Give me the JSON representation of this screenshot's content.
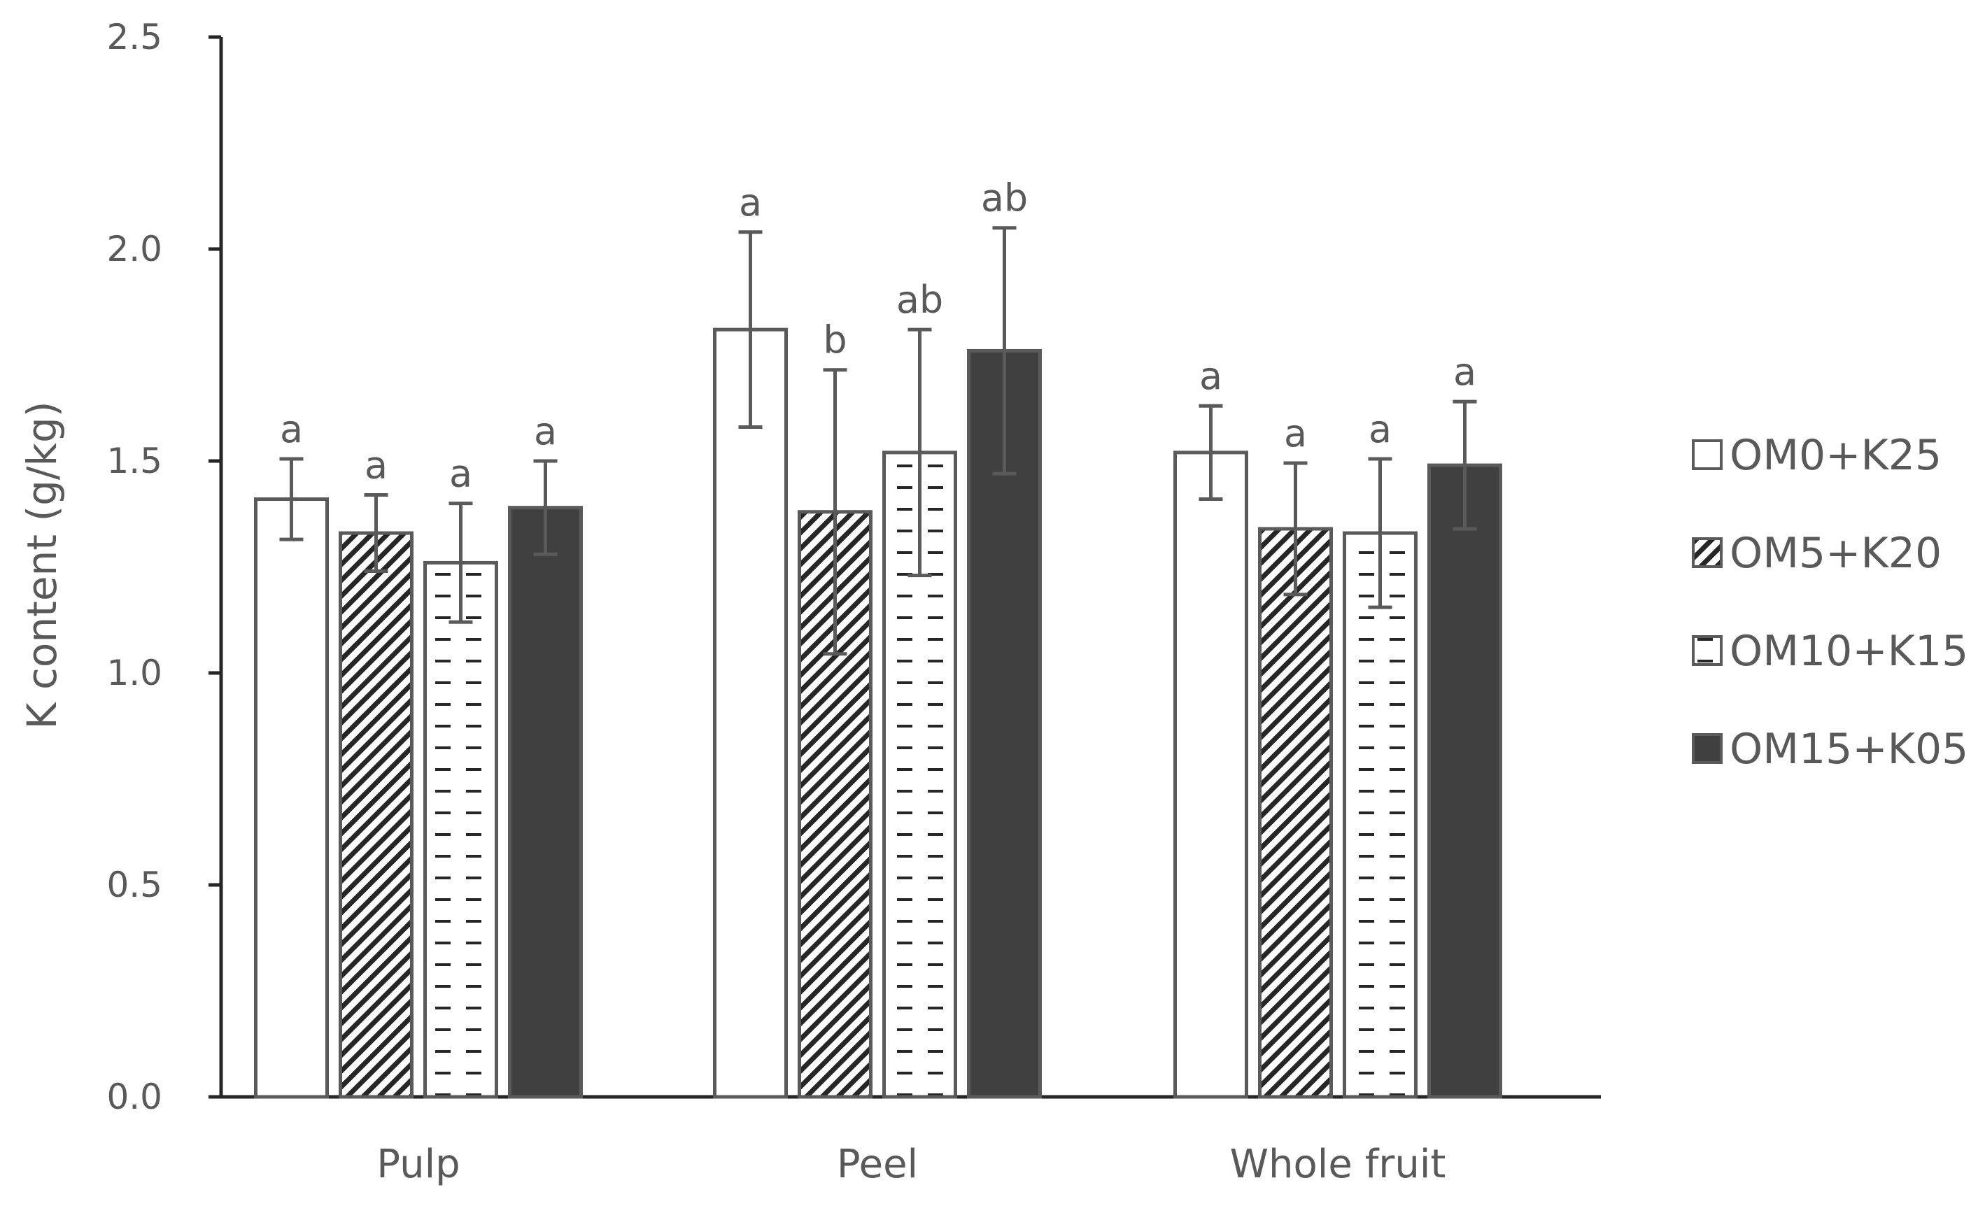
{
  "chart_data": {
    "type": "bar",
    "title": "",
    "xlabel": "",
    "ylabel": "K content (g/kg)",
    "ylim": [
      0,
      2.5
    ],
    "yticks": [
      "0.0",
      "0.5",
      "1.0",
      "1.5",
      "2.0",
      "2.5"
    ],
    "grid": false,
    "legend_position": "right",
    "categories": [
      "Pulp",
      "Peel",
      "Whole fruit"
    ],
    "series": [
      {
        "name": "OM0+K25",
        "pattern": "white",
        "values": [
          1.41,
          1.81,
          1.52
        ],
        "errors": [
          0.095,
          0.23,
          0.11
        ],
        "labels": [
          "a",
          "a",
          "a"
        ]
      },
      {
        "name": "OM5+K20",
        "pattern": "diagonal-hatch",
        "values": [
          1.33,
          1.38,
          1.34
        ],
        "errors": [
          0.09,
          0.335,
          0.155
        ],
        "labels": [
          "a",
          "b",
          "a"
        ]
      },
      {
        "name": "OM10+K15",
        "pattern": "horizontal-dash",
        "values": [
          1.26,
          1.52,
          1.33
        ],
        "errors": [
          0.14,
          0.29,
          0.175
        ],
        "labels": [
          "a",
          "ab",
          "a"
        ]
      },
      {
        "name": "OM15+K05",
        "pattern": "dark",
        "values": [
          1.39,
          1.76,
          1.49
        ],
        "errors": [
          0.11,
          0.29,
          0.15
        ],
        "labels": [
          "a",
          "ab",
          "a"
        ]
      }
    ],
    "colors": {
      "axis": "#262626",
      "text": "#595959",
      "edge": "#5a5a5a",
      "dark_fill": "#404040",
      "hatch": "#262626"
    }
  }
}
